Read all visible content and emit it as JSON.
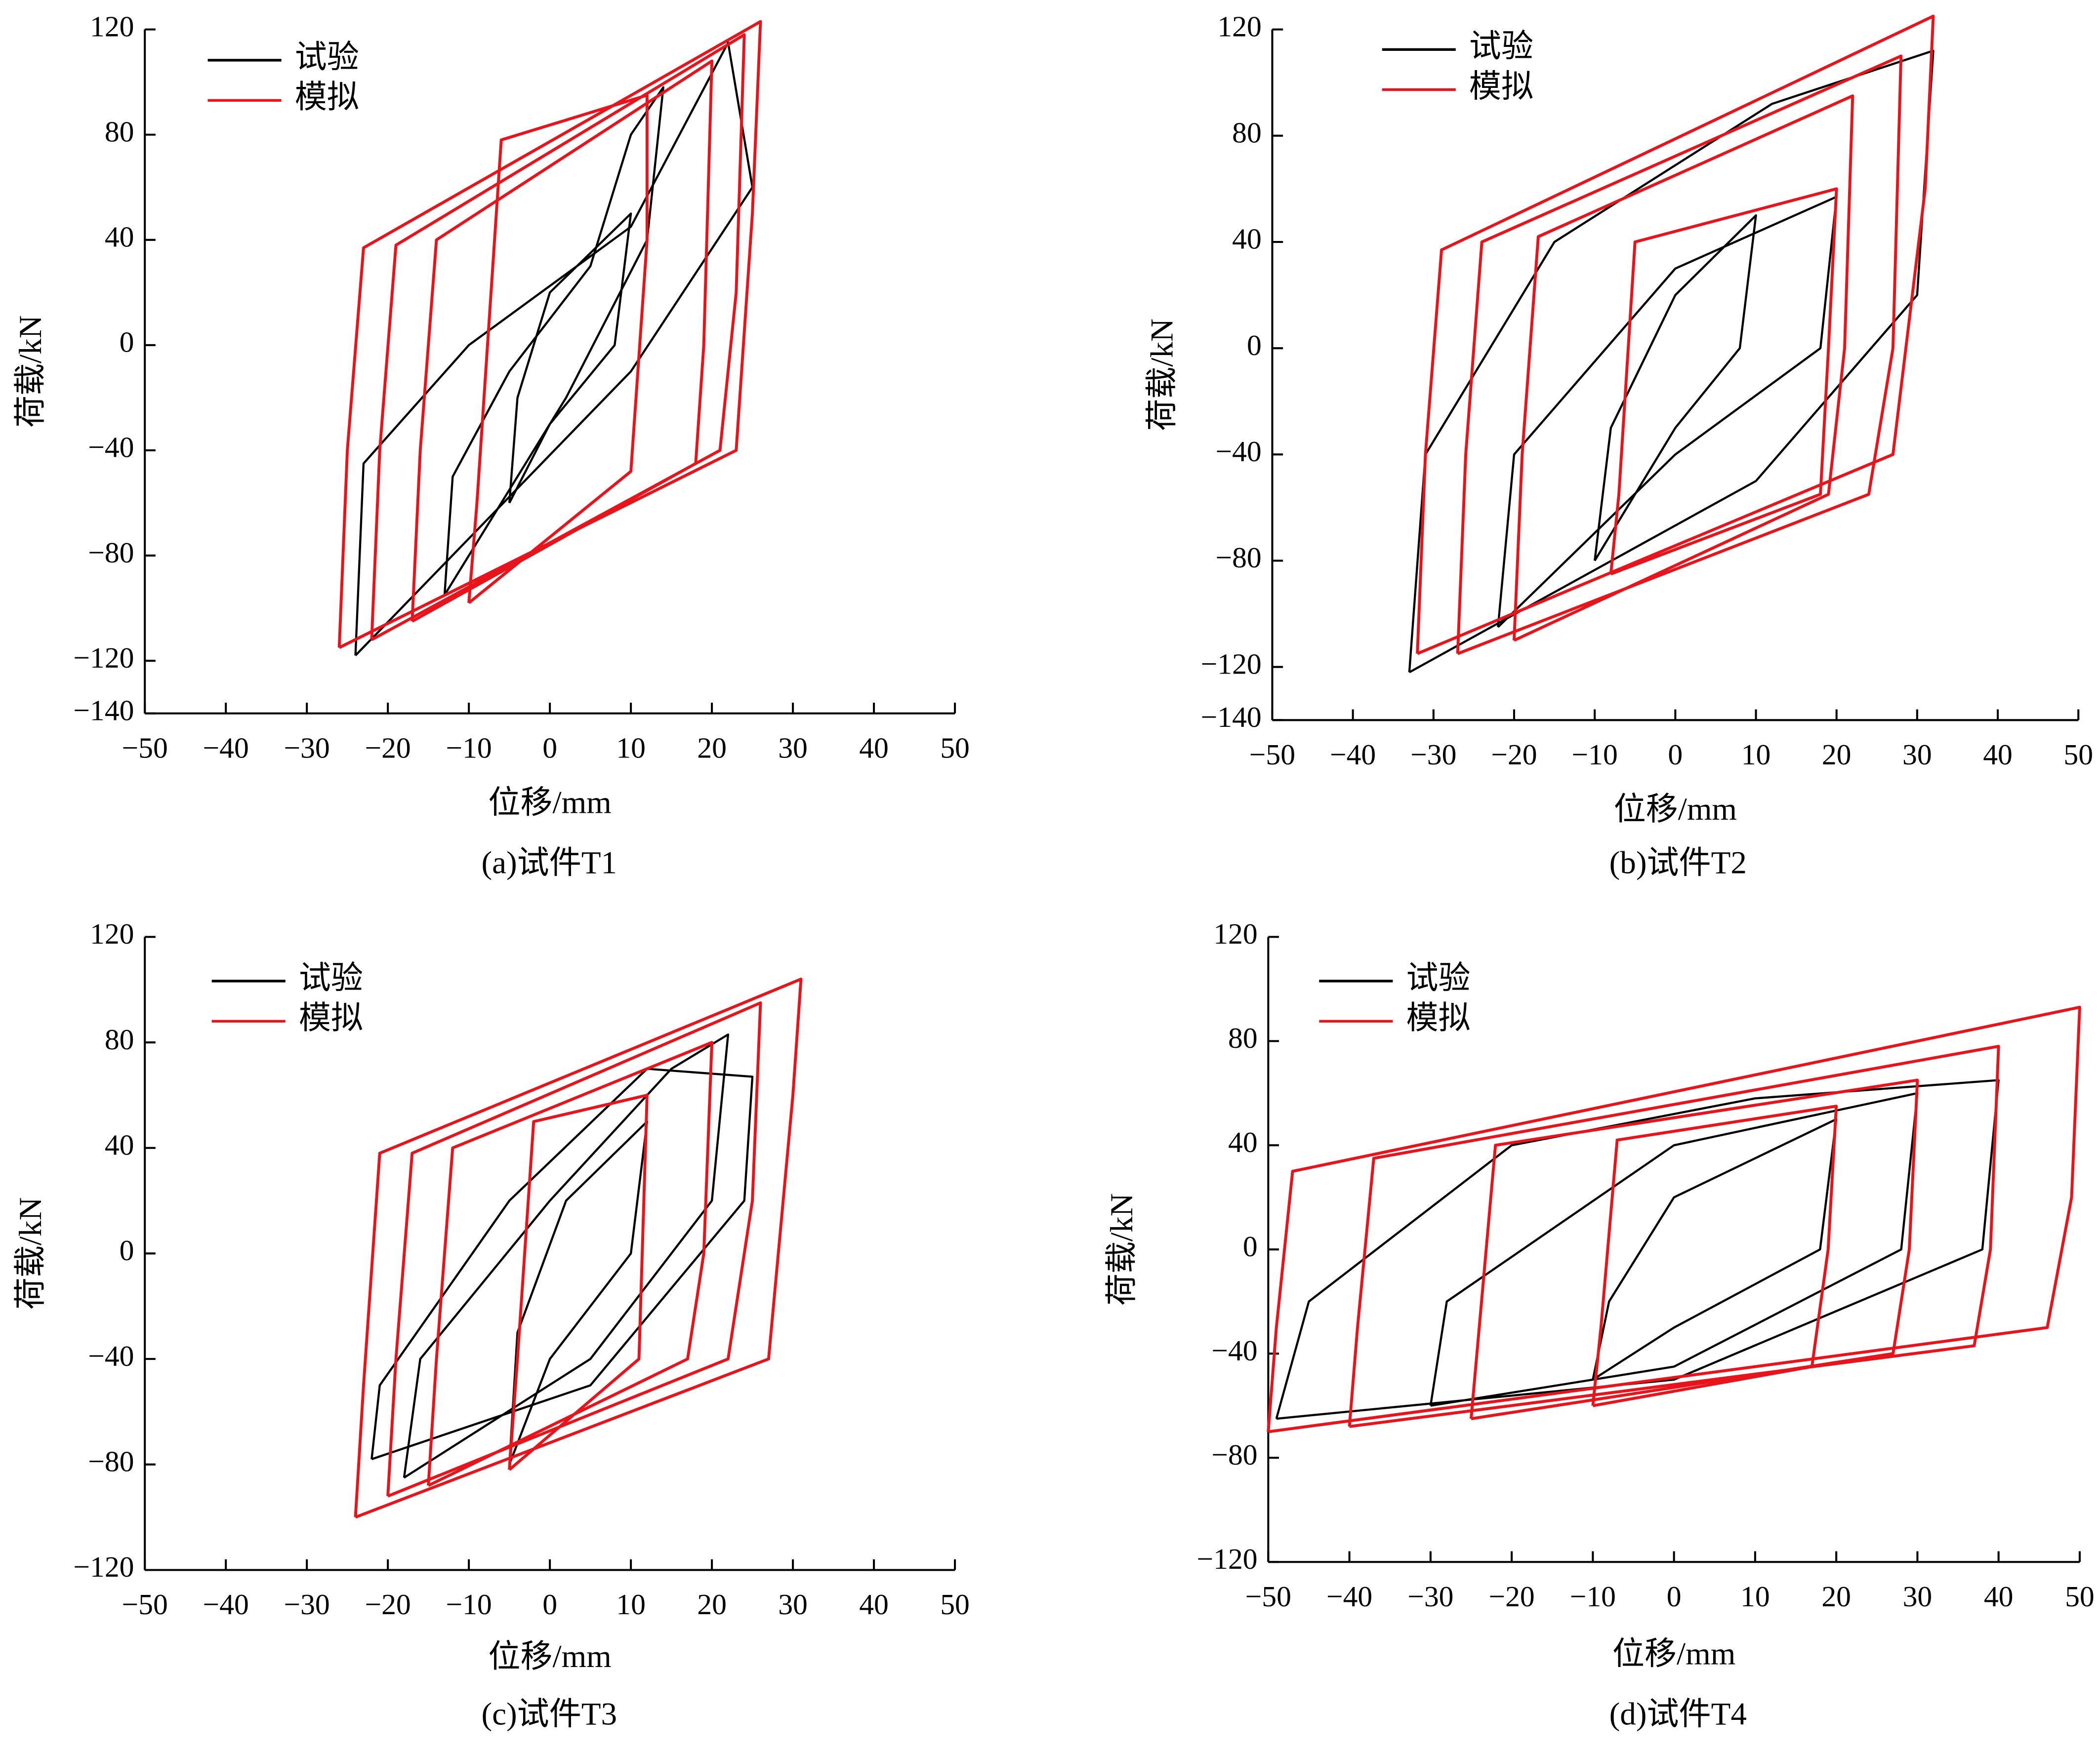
{
  "chart_data": [
    {
      "type": "line",
      "caption": "(a)试件T1",
      "xlabel": "位移/mm",
      "ylabel": "荷载/kN",
      "xlim": [
        -50,
        50
      ],
      "ylim": [
        -140,
        120
      ],
      "xticks": [
        {
          "value": -50,
          "label": "−50"
        },
        {
          "value": -40,
          "label": "−40"
        },
        {
          "value": -30,
          "label": "−30"
        },
        {
          "value": -20,
          "label": "−20"
        },
        {
          "value": -10,
          "label": "−10"
        },
        0,
        10,
        20,
        30,
        40,
        50
      ],
      "yticks": [
        {
          "value": -140,
          "label": "−140"
        },
        {
          "value": -120,
          "label": "−120"
        },
        {
          "value": -80,
          "label": "−80"
        },
        {
          "value": -40,
          "label": "−40"
        },
        0,
        40,
        80,
        120
      ],
      "series": [
        {
          "name": "试验",
          "color": "#000000",
          "x": [
            -5,
            -4,
            0,
            10,
            8,
            0,
            -5,
            null,
            -13,
            -12,
            -5,
            5,
            10,
            14,
            12,
            2,
            -13,
            null,
            -24,
            -23,
            -10,
            10,
            22,
            25,
            10,
            -24
          ],
          "values": [
            -60,
            -20,
            20,
            50,
            0,
            -30,
            -60,
            null,
            -95,
            -50,
            -10,
            30,
            80,
            98,
            40,
            -20,
            -95,
            null,
            -118,
            -45,
            0,
            45,
            115,
            60,
            -10,
            -118
          ]
        },
        {
          "name": "模拟",
          "color": "#e8141b",
          "x": [
            -10,
            -9,
            -6,
            12,
            12,
            10,
            -10,
            null,
            -17,
            -16,
            -14,
            20,
            19,
            18,
            -17,
            null,
            -22,
            -21,
            -19,
            24,
            23,
            21,
            -22,
            null,
            -26,
            -25,
            -23,
            26,
            25,
            23,
            -26
          ],
          "values": [
            -98,
            -60,
            78,
            95,
            40,
            -48,
            -98,
            null,
            -105,
            -40,
            40,
            108,
            0,
            -45,
            -105,
            null,
            -112,
            -40,
            38,
            118,
            20,
            -40,
            -112,
            null,
            -115,
            -40,
            37,
            123,
            50,
            -40,
            -115
          ]
        }
      ]
    },
    {
      "type": "line",
      "caption": "(b)试件T2",
      "xlabel": "位移/mm",
      "ylabel": "荷载/kN",
      "xlim": [
        -50,
        50
      ],
      "ylim": [
        -140,
        120
      ],
      "xticks": [
        {
          "value": -50,
          "label": "−50"
        },
        {
          "value": -40,
          "label": "−40"
        },
        {
          "value": -30,
          "label": "−30"
        },
        {
          "value": -20,
          "label": "−20"
        },
        {
          "value": -10,
          "label": "−10"
        },
        0,
        10,
        20,
        30,
        40,
        50
      ],
      "yticks": [
        {
          "value": -140,
          "label": "−140"
        },
        {
          "value": -120,
          "label": "−120"
        },
        {
          "value": -80,
          "label": "−80"
        },
        {
          "value": -40,
          "label": "−40"
        },
        0,
        40,
        80,
        120
      ],
      "series": [
        {
          "name": "试验",
          "color": "#000000",
          "x": [
            -10,
            -8,
            0,
            10,
            8,
            0,
            -10,
            null,
            -22,
            -20,
            0,
            20,
            18,
            0,
            -22,
            null,
            -33,
            -31,
            -15,
            12,
            28,
            32,
            30,
            10,
            -33
          ],
          "values": [
            -80,
            -30,
            20,
            50,
            0,
            -30,
            -80,
            null,
            -105,
            -40,
            30,
            57,
            0,
            -40,
            -105,
            null,
            -122,
            -40,
            40,
            92,
            108,
            112,
            20,
            -50,
            -122
          ]
        },
        {
          "name": "模拟",
          "color": "#e8141b",
          "x": [
            -8,
            -7,
            -5,
            20,
            19,
            18,
            -8,
            null,
            -20,
            -19,
            -17,
            22,
            21,
            19,
            -20,
            null,
            -27,
            -26,
            -24,
            28,
            27,
            24,
            -27,
            null,
            -32,
            -31,
            -29,
            32,
            31,
            27,
            -32
          ],
          "values": [
            -85,
            -55,
            40,
            60,
            0,
            -55,
            -85,
            null,
            -110,
            -40,
            42,
            95,
            0,
            -55,
            -110,
            null,
            -115,
            -40,
            40,
            110,
            0,
            -55,
            -115,
            null,
            -115,
            -40,
            37,
            125,
            60,
            -40,
            -115
          ]
        }
      ]
    },
    {
      "type": "line",
      "caption": "(c)试件T3",
      "xlabel": "位移/mm",
      "ylabel": "荷载/kN",
      "xlim": [
        -50,
        50
      ],
      "ylim": [
        -120,
        120
      ],
      "xticks": [
        {
          "value": -50,
          "label": "−50"
        },
        {
          "value": -40,
          "label": "−40"
        },
        {
          "value": -30,
          "label": "−30"
        },
        {
          "value": -20,
          "label": "−20"
        },
        {
          "value": -10,
          "label": "−10"
        },
        0,
        10,
        20,
        30,
        40,
        50
      ],
      "yticks": [
        {
          "value": -120,
          "label": "−120"
        },
        {
          "value": -80,
          "label": "−80"
        },
        {
          "value": -40,
          "label": "−40"
        },
        0,
        40,
        80,
        120
      ],
      "series": [
        {
          "name": "试验",
          "color": "#000000",
          "x": [
            -5,
            -4,
            2,
            12,
            10,
            0,
            -5,
            null,
            -18,
            -16,
            0,
            15,
            22,
            20,
            5,
            -18,
            null,
            -22,
            -21,
            -5,
            12,
            25,
            24,
            5,
            -22
          ],
          "values": [
            -80,
            -30,
            20,
            50,
            0,
            -40,
            -80,
            null,
            -85,
            -40,
            20,
            70,
            83,
            20,
            -40,
            -85,
            null,
            -78,
            -50,
            20,
            70,
            67,
            20,
            -50,
            -78
          ]
        },
        {
          "name": "模拟",
          "color": "#e8141b",
          "x": [
            -5,
            -4,
            -2,
            12,
            11,
            -5,
            null,
            -15,
            -14,
            -12,
            20,
            19,
            17,
            -15,
            null,
            -20,
            -19,
            -17,
            26,
            25,
            22,
            -20,
            null,
            -24,
            -23,
            -21,
            31,
            30,
            27,
            -24
          ],
          "values": [
            -82,
            -40,
            50,
            60,
            -40,
            -82,
            null,
            -88,
            -40,
            40,
            80,
            0,
            -40,
            -88,
            null,
            -92,
            -40,
            38,
            95,
            20,
            -40,
            -92,
            null,
            -100,
            -50,
            38,
            104,
            60,
            -40,
            -100
          ]
        }
      ]
    },
    {
      "type": "line",
      "caption": "(d)试件T4",
      "xlabel": "位移/mm",
      "ylabel": "荷载/kN",
      "xlim": [
        -50,
        50
      ],
      "ylim": [
        -120,
        120
      ],
      "xticks": [
        {
          "value": -50,
          "label": "−50"
        },
        {
          "value": -40,
          "label": "−40"
        },
        {
          "value": -30,
          "label": "−30"
        },
        {
          "value": -20,
          "label": "−20"
        },
        {
          "value": -10,
          "label": "−10"
        },
        0,
        10,
        20,
        30,
        40,
        50
      ],
      "yticks": [
        {
          "value": -120,
          "label": "−120"
        },
        {
          "value": -80,
          "label": "−80"
        },
        {
          "value": -40,
          "label": "−40"
        },
        0,
        40,
        80,
        120
      ],
      "series": [
        {
          "name": "试验",
          "color": "#000000",
          "x": [
            -10,
            -8,
            0,
            20,
            18,
            0,
            -10,
            null,
            -30,
            -28,
            0,
            30,
            28,
            0,
            -30,
            null,
            -49,
            -45,
            -20,
            10,
            40,
            38,
            0,
            -49
          ],
          "values": [
            -50,
            -20,
            20,
            50,
            0,
            -30,
            -50,
            null,
            -60,
            -20,
            40,
            60,
            0,
            -45,
            -60,
            null,
            -65,
            -20,
            40,
            58,
            65,
            0,
            -50,
            -65
          ]
        },
        {
          "name": "模拟",
          "color": "#e8141b",
          "x": [
            -10,
            -9,
            -7,
            20,
            19,
            17,
            -10,
            null,
            -25,
            -24,
            -22,
            30,
            29,
            27,
            -25,
            null,
            -40,
            -39,
            -37,
            40,
            39,
            37,
            -40,
            null,
            -50,
            -49,
            -47,
            50,
            49,
            46,
            -50
          ],
          "values": [
            -60,
            -30,
            42,
            55,
            0,
            -45,
            -60,
            null,
            -65,
            -30,
            40,
            65,
            0,
            -40,
            -65,
            null,
            -68,
            -30,
            35,
            78,
            0,
            -37,
            -68,
            null,
            -70,
            -30,
            30,
            93,
            20,
            -30,
            -70
          ]
        }
      ]
    }
  ]
}
